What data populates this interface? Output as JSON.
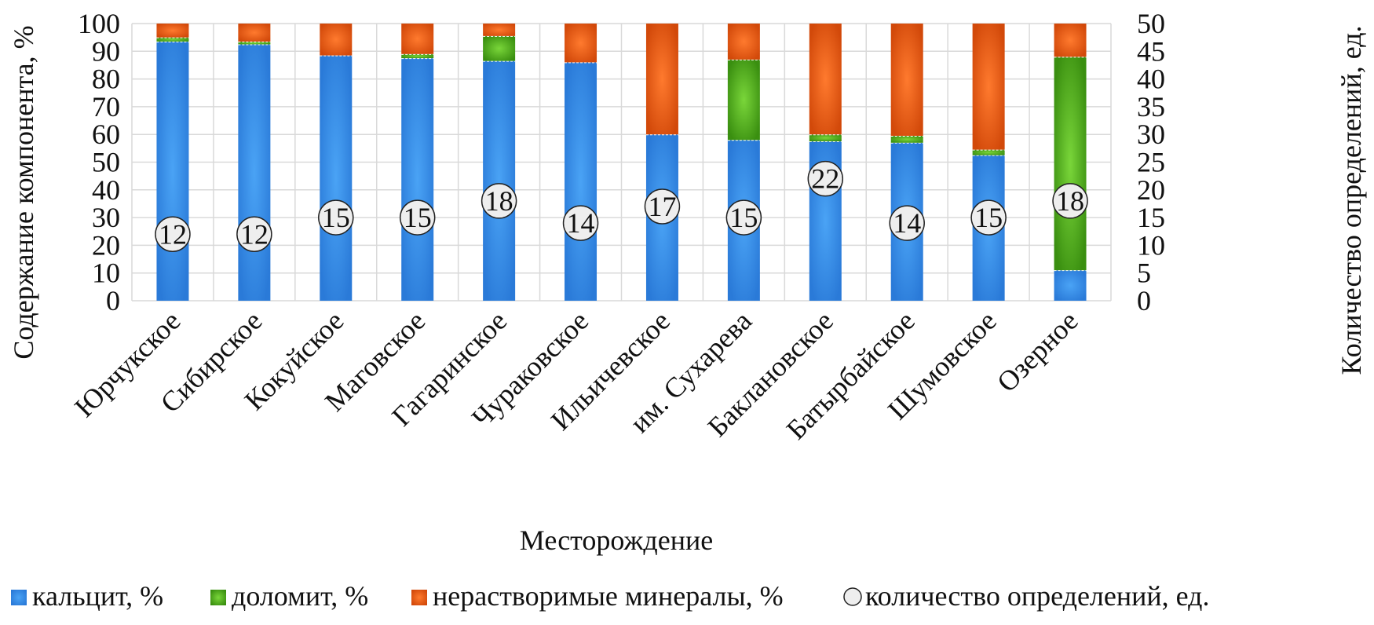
{
  "chart_data": {
    "type": "bar",
    "stacked": true,
    "xlabel": "Месторождение",
    "ylabel": "Содержание компонента, %",
    "y2label": "Количество определений, ед.",
    "ylim": [
      0,
      100
    ],
    "y2lim": [
      0,
      50
    ],
    "yticks": [
      "0",
      "10",
      "20",
      "30",
      "40",
      "50",
      "60",
      "70",
      "80",
      "90",
      "100"
    ],
    "y2ticks": [
      "0",
      "5",
      "10",
      "15",
      "20",
      "25",
      "30",
      "35",
      "40",
      "45",
      "50"
    ],
    "grid": true,
    "legend_position": "bottom",
    "categories": [
      "Юрчукское",
      "Сибирское",
      "Кокуйское",
      "Маговское",
      "Гагаринское",
      "Чураковское",
      "Ильичевское",
      "им. Сухарева",
      "Баклановское",
      "Батырбайское",
      "Шумовское",
      "Озерное"
    ],
    "series": [
      {
        "name": "кальцит, %",
        "color": "#2f80e0",
        "axis": "left",
        "values": [
          93.5,
          92.5,
          88.5,
          87.5,
          86.5,
          86,
          60,
          58,
          57.5,
          57,
          52.5,
          11
        ]
      },
      {
        "name": "доломит, %",
        "color": "#3f9a12",
        "axis": "left",
        "values": [
          1.5,
          1,
          0,
          1.5,
          9,
          0,
          0,
          29,
          2.5,
          2.5,
          2,
          77
        ]
      },
      {
        "name": "нерастворимые минералы, %",
        "color": "#e45a10",
        "axis": "left",
        "values": [
          5,
          6.5,
          11.5,
          11,
          4.5,
          14,
          40,
          13,
          40,
          40.5,
          45.5,
          12
        ]
      },
      {
        "name": "количество определений, ед.",
        "color": "#eeeeee",
        "axis": "right",
        "marker": "circle",
        "values": [
          12,
          12,
          15,
          15,
          18,
          14,
          17,
          15,
          22,
          14,
          15,
          18
        ]
      }
    ]
  }
}
